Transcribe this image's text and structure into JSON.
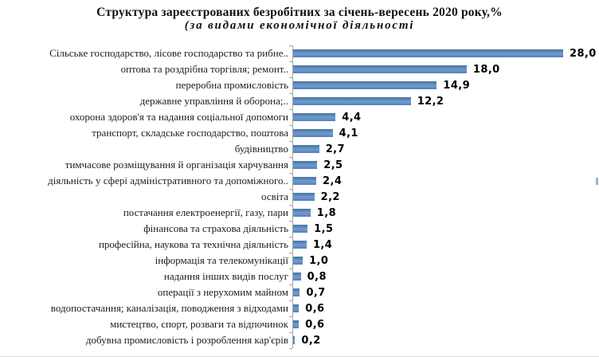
{
  "page": {
    "background": "#ffffff"
  },
  "chart_data": {
    "type": "bar",
    "orientation": "horizontal",
    "title": "Структура  зареєстрованих безробітних за січень-вересень 2020 року,%",
    "subtitle": "(за видами економічної діяльності",
    "categories": [
      "Сільське господарство, лісове господарство та рибне..",
      "оптова та роздрібна торгівля; ремонт..",
      "переробна промисловість",
      "державне управління й оборона;..",
      "охорона здоров'я та надання соціальної допомоги",
      "транспорт, складське господарство, поштова",
      "будівництво",
      "тимчасове розміщування й організація харчування",
      "діяльність у сфері адміністративного та допоміжного..",
      "освіта",
      "постачання електроенергії, газу, пари",
      "фінансова та страхова діяльність",
      "професійна, наукова та технічна діяльність",
      "інформація та телекомунікації",
      "надання інших видів послуг",
      "операції з нерухомим майном",
      "водопостачання; каналізація, поводження з відходами",
      "мистецтво, спорт, розваги та відпочинок",
      "добувна промисловість і розроблення кар'єрів"
    ],
    "values": [
      28.0,
      18.0,
      14.9,
      12.2,
      4.4,
      4.1,
      2.7,
      2.5,
      2.4,
      2.2,
      1.8,
      1.5,
      1.4,
      1.0,
      0.8,
      0.7,
      0.6,
      0.6,
      0.2
    ],
    "value_labels": [
      "28,0",
      "18,0",
      "14,9",
      "12,2",
      "4,4",
      "4,1",
      "2,7",
      "2,5",
      "2,4",
      "2,2",
      "1,8",
      "1,5",
      "1,4",
      "1,0",
      "0,8",
      "0,7",
      "0,6",
      "0,6",
      "0,2"
    ],
    "xlim": [
      0,
      31
    ],
    "bar_color": "#4f81bd",
    "axis_color": "#a6a6a6",
    "text_color": "#000000",
    "grid": false,
    "legend": "none",
    "data_labels": "outside-end"
  }
}
